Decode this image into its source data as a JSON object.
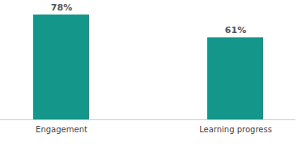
{
  "chart_data": {
    "type": "bar",
    "categories": [
      "Engagement",
      "Learning progress"
    ],
    "values": [
      78,
      61
    ],
    "value_labels": [
      "78%",
      "61%"
    ],
    "data_labels": true,
    "color": "#15968a",
    "ylim": [
      0,
      78
    ],
    "yticks": [],
    "tick_labels": "x",
    "grid": false
  }
}
